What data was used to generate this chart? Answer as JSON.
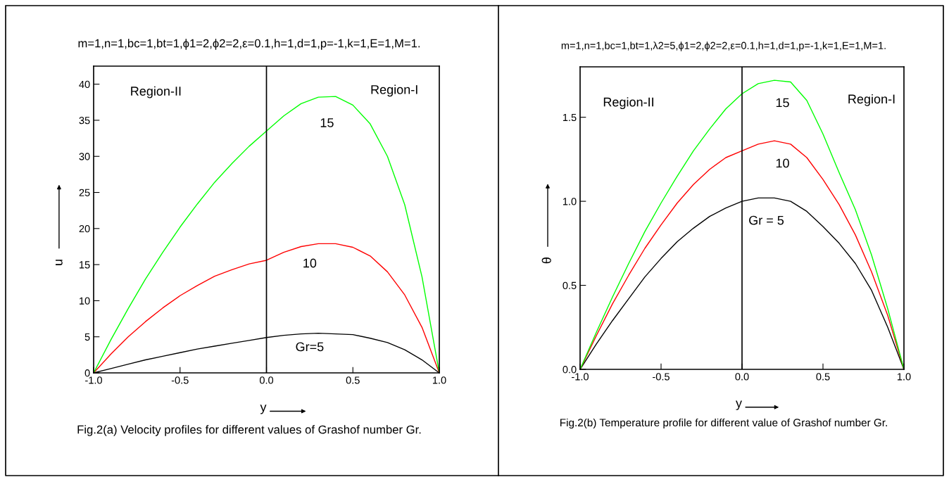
{
  "chart_data": [
    {
      "type": "line",
      "title": "m=1,n=1,bc=1,bt=1,ϕ1=2,ϕ2=2,ε=0.1,h=1,d=1,p=-1,k=1,E=1,M=1.",
      "xlabel": "y",
      "ylabel": "u",
      "x": [
        -1.0,
        -0.9,
        -0.8,
        -0.7,
        -0.6,
        -0.5,
        -0.4,
        -0.3,
        -0.2,
        -0.1,
        0.0,
        0.1,
        0.2,
        0.3,
        0.4,
        0.5,
        0.6,
        0.7,
        0.8,
        0.9,
        1.0
      ],
      "series": [
        {
          "name": "Gr=5",
          "color": "#000000",
          "values": [
            0,
            0.6,
            1.2,
            1.8,
            2.3,
            2.8,
            3.3,
            3.7,
            4.1,
            4.5,
            4.9,
            5.2,
            5.4,
            5.5,
            5.4,
            5.3,
            4.8,
            4.2,
            3.2,
            1.8,
            0
          ]
        },
        {
          "name": "10",
          "color": "#ff0000",
          "values": [
            0,
            2.6,
            5.0,
            7.1,
            9.0,
            10.7,
            12.1,
            13.4,
            14.3,
            15.1,
            15.6,
            16.7,
            17.5,
            17.9,
            17.9,
            17.4,
            16.2,
            14.0,
            10.8,
            6.3,
            0
          ]
        },
        {
          "name": "15",
          "color": "#00ff00",
          "values": [
            0,
            4.6,
            8.9,
            13.0,
            16.7,
            20.2,
            23.4,
            26.4,
            29.0,
            31.4,
            33.5,
            35.6,
            37.3,
            38.2,
            38.3,
            37.1,
            34.5,
            30.0,
            23.3,
            13.3,
            0
          ]
        }
      ],
      "xlim": [
        -1.0,
        1.0
      ],
      "ylim": [
        0,
        42.5
      ],
      "xticks": [
        {
          "value": -1.0,
          "label": "-1.0"
        },
        {
          "value": -0.5,
          "label": "-0.5"
        },
        {
          "value": 0.0,
          "label": "0.0"
        },
        {
          "value": 0.5,
          "label": "0.5"
        },
        {
          "value": 1.0,
          "label": "1.0"
        }
      ],
      "yticks": [
        0,
        5,
        10,
        15,
        20,
        25,
        30,
        35,
        40
      ],
      "ref_lines": [
        {
          "axis": "x",
          "value": 0.0,
          "color": "#000000"
        }
      ],
      "annotations": [
        "Region-II",
        "Region-I",
        "Fig.2(a) Velocity profiles for different values of Grashof number Gr."
      ],
      "grid": false,
      "legend": false,
      "marker": "none",
      "line_style": "solid"
    },
    {
      "type": "line",
      "title": "m=1,n=1,bc=1,bt=1,λ2=5,ϕ1=2,ϕ2=2,ε=0.1,h=1,d=1,p=-1,k=1,E=1,M=1.",
      "xlabel": "y",
      "ylabel": "θ",
      "x": [
        -1.0,
        -0.9,
        -0.8,
        -0.7,
        -0.6,
        -0.5,
        -0.4,
        -0.3,
        -0.2,
        -0.1,
        0.0,
        0.1,
        0.2,
        0.3,
        0.4,
        0.5,
        0.6,
        0.7,
        0.8,
        0.9,
        1.0
      ],
      "series": [
        {
          "name": "Gr = 5",
          "color": "#000000",
          "values": [
            0,
            0.15,
            0.29,
            0.42,
            0.55,
            0.66,
            0.76,
            0.84,
            0.91,
            0.96,
            1.0,
            1.02,
            1.02,
            1.0,
            0.94,
            0.85,
            0.75,
            0.63,
            0.47,
            0.25,
            0
          ]
        },
        {
          "name": "10",
          "color": "#ff0000",
          "values": [
            0,
            0.2,
            0.39,
            0.56,
            0.72,
            0.86,
            0.99,
            1.1,
            1.19,
            1.26,
            1.3,
            1.34,
            1.36,
            1.34,
            1.26,
            1.13,
            0.98,
            0.8,
            0.58,
            0.32,
            0
          ]
        },
        {
          "name": "15",
          "color": "#00ff00",
          "values": [
            0,
            0.22,
            0.43,
            0.63,
            0.82,
            0.99,
            1.15,
            1.3,
            1.43,
            1.55,
            1.64,
            1.7,
            1.72,
            1.71,
            1.6,
            1.4,
            1.17,
            0.95,
            0.68,
            0.36,
            0
          ]
        }
      ],
      "xlim": [
        -1.0,
        1.0
      ],
      "ylim": [
        0,
        1.8
      ],
      "xticks": [
        {
          "value": -1.0,
          "label": "-1.0"
        },
        {
          "value": -0.5,
          "label": "-0.5"
        },
        {
          "value": 0.0,
          "label": "0.0"
        },
        {
          "value": 0.5,
          "label": "0.5"
        },
        {
          "value": 1.0,
          "label": "1.0"
        }
      ],
      "yticks": [
        {
          "value": 0.0,
          "label": "0.0"
        },
        {
          "value": 0.5,
          "label": "0.5"
        },
        {
          "value": 1.0,
          "label": "1.0"
        },
        {
          "value": 1.5,
          "label": "1.5"
        }
      ],
      "ref_lines": [
        {
          "axis": "x",
          "value": 0.0,
          "color": "#000000"
        }
      ],
      "annotations": [
        "Region-II",
        "Region-I",
        "Fig.2(b) Temperature profile for different value of Grashof number Gr."
      ],
      "grid": false,
      "legend": false,
      "marker": "none",
      "line_style": "solid"
    }
  ]
}
